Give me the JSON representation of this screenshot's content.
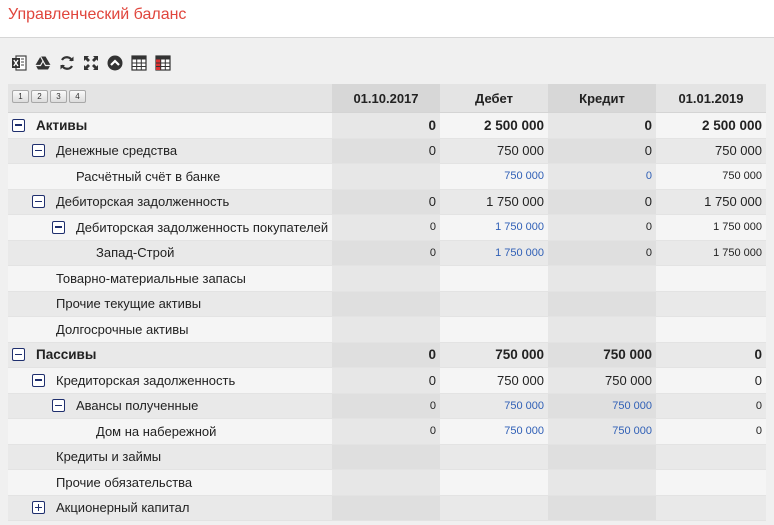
{
  "title": "Управленческий баланс",
  "toolbar": {
    "icons": [
      "excel-icon",
      "google-drive-icon",
      "refresh-icon",
      "fullscreen-icon",
      "collapse-up-icon",
      "table-icon",
      "table-red-icon"
    ]
  },
  "levels": [
    "1",
    "2",
    "3",
    "4"
  ],
  "columns": [
    "01.10.2017",
    "Дебет",
    "Кредит",
    "01.01.2019"
  ],
  "colors": {
    "title": "#e0453c",
    "link": "#2f5fb6",
    "toggle": "#1f2f6e"
  },
  "rows": [
    {
      "label": "Активы",
      "level": 0,
      "toggle": "minus",
      "bold": true,
      "values": [
        "0",
        "2 500 000",
        "0",
        "2 500 000"
      ]
    },
    {
      "label": "Денежные средства",
      "level": 1,
      "toggle": "minus",
      "values": [
        "0",
        "750 000",
        "0",
        "750 000"
      ]
    },
    {
      "label": "Расчётный счёт в банке",
      "level": 2,
      "small": true,
      "values": [
        "",
        "750 000",
        "0",
        "750 000"
      ]
    },
    {
      "label": "Дебиторская задолженность",
      "level": 1,
      "toggle": "minus",
      "values": [
        "0",
        "1 750 000",
        "0",
        "1 750 000"
      ]
    },
    {
      "label": "Дебиторская задолженность покупателей",
      "level": 2,
      "toggle": "minus",
      "small": true,
      "values": [
        "0",
        "1 750 000",
        "0",
        "1 750 000"
      ]
    },
    {
      "label": "Запад-Строй",
      "level": 3,
      "small": true,
      "values": [
        "0",
        "1 750 000",
        "0",
        "1 750 000"
      ]
    },
    {
      "label": "Товарно-материальные запасы",
      "level": 1,
      "values": [
        "",
        "",
        "",
        ""
      ]
    },
    {
      "label": "Прочие текущие активы",
      "level": 1,
      "values": [
        "",
        "",
        "",
        ""
      ]
    },
    {
      "label": "Долгосрочные активы",
      "level": 1,
      "values": [
        "",
        "",
        "",
        ""
      ]
    },
    {
      "label": "Пассивы",
      "level": 0,
      "toggle": "minus",
      "bold": true,
      "values": [
        "0",
        "750 000",
        "750 000",
        "0"
      ]
    },
    {
      "label": "Кредиторская задолженность",
      "level": 1,
      "toggle": "minus",
      "values": [
        "0",
        "750 000",
        "750 000",
        "0"
      ]
    },
    {
      "label": "Авансы полученные",
      "level": 2,
      "toggle": "minus",
      "small": true,
      "values": [
        "0",
        "750 000",
        "750 000",
        "0"
      ]
    },
    {
      "label": "Дом на набережной",
      "level": 3,
      "small": true,
      "values": [
        "0",
        "750 000",
        "750 000",
        "0"
      ]
    },
    {
      "label": "Кредиты и займы",
      "level": 1,
      "values": [
        "",
        "",
        "",
        ""
      ]
    },
    {
      "label": "Прочие обязательства",
      "level": 1,
      "values": [
        "",
        "",
        "",
        ""
      ]
    },
    {
      "label": "Акционерный капитал",
      "level": 1,
      "toggle": "plus",
      "values": [
        "",
        "",
        "",
        ""
      ]
    }
  ]
}
